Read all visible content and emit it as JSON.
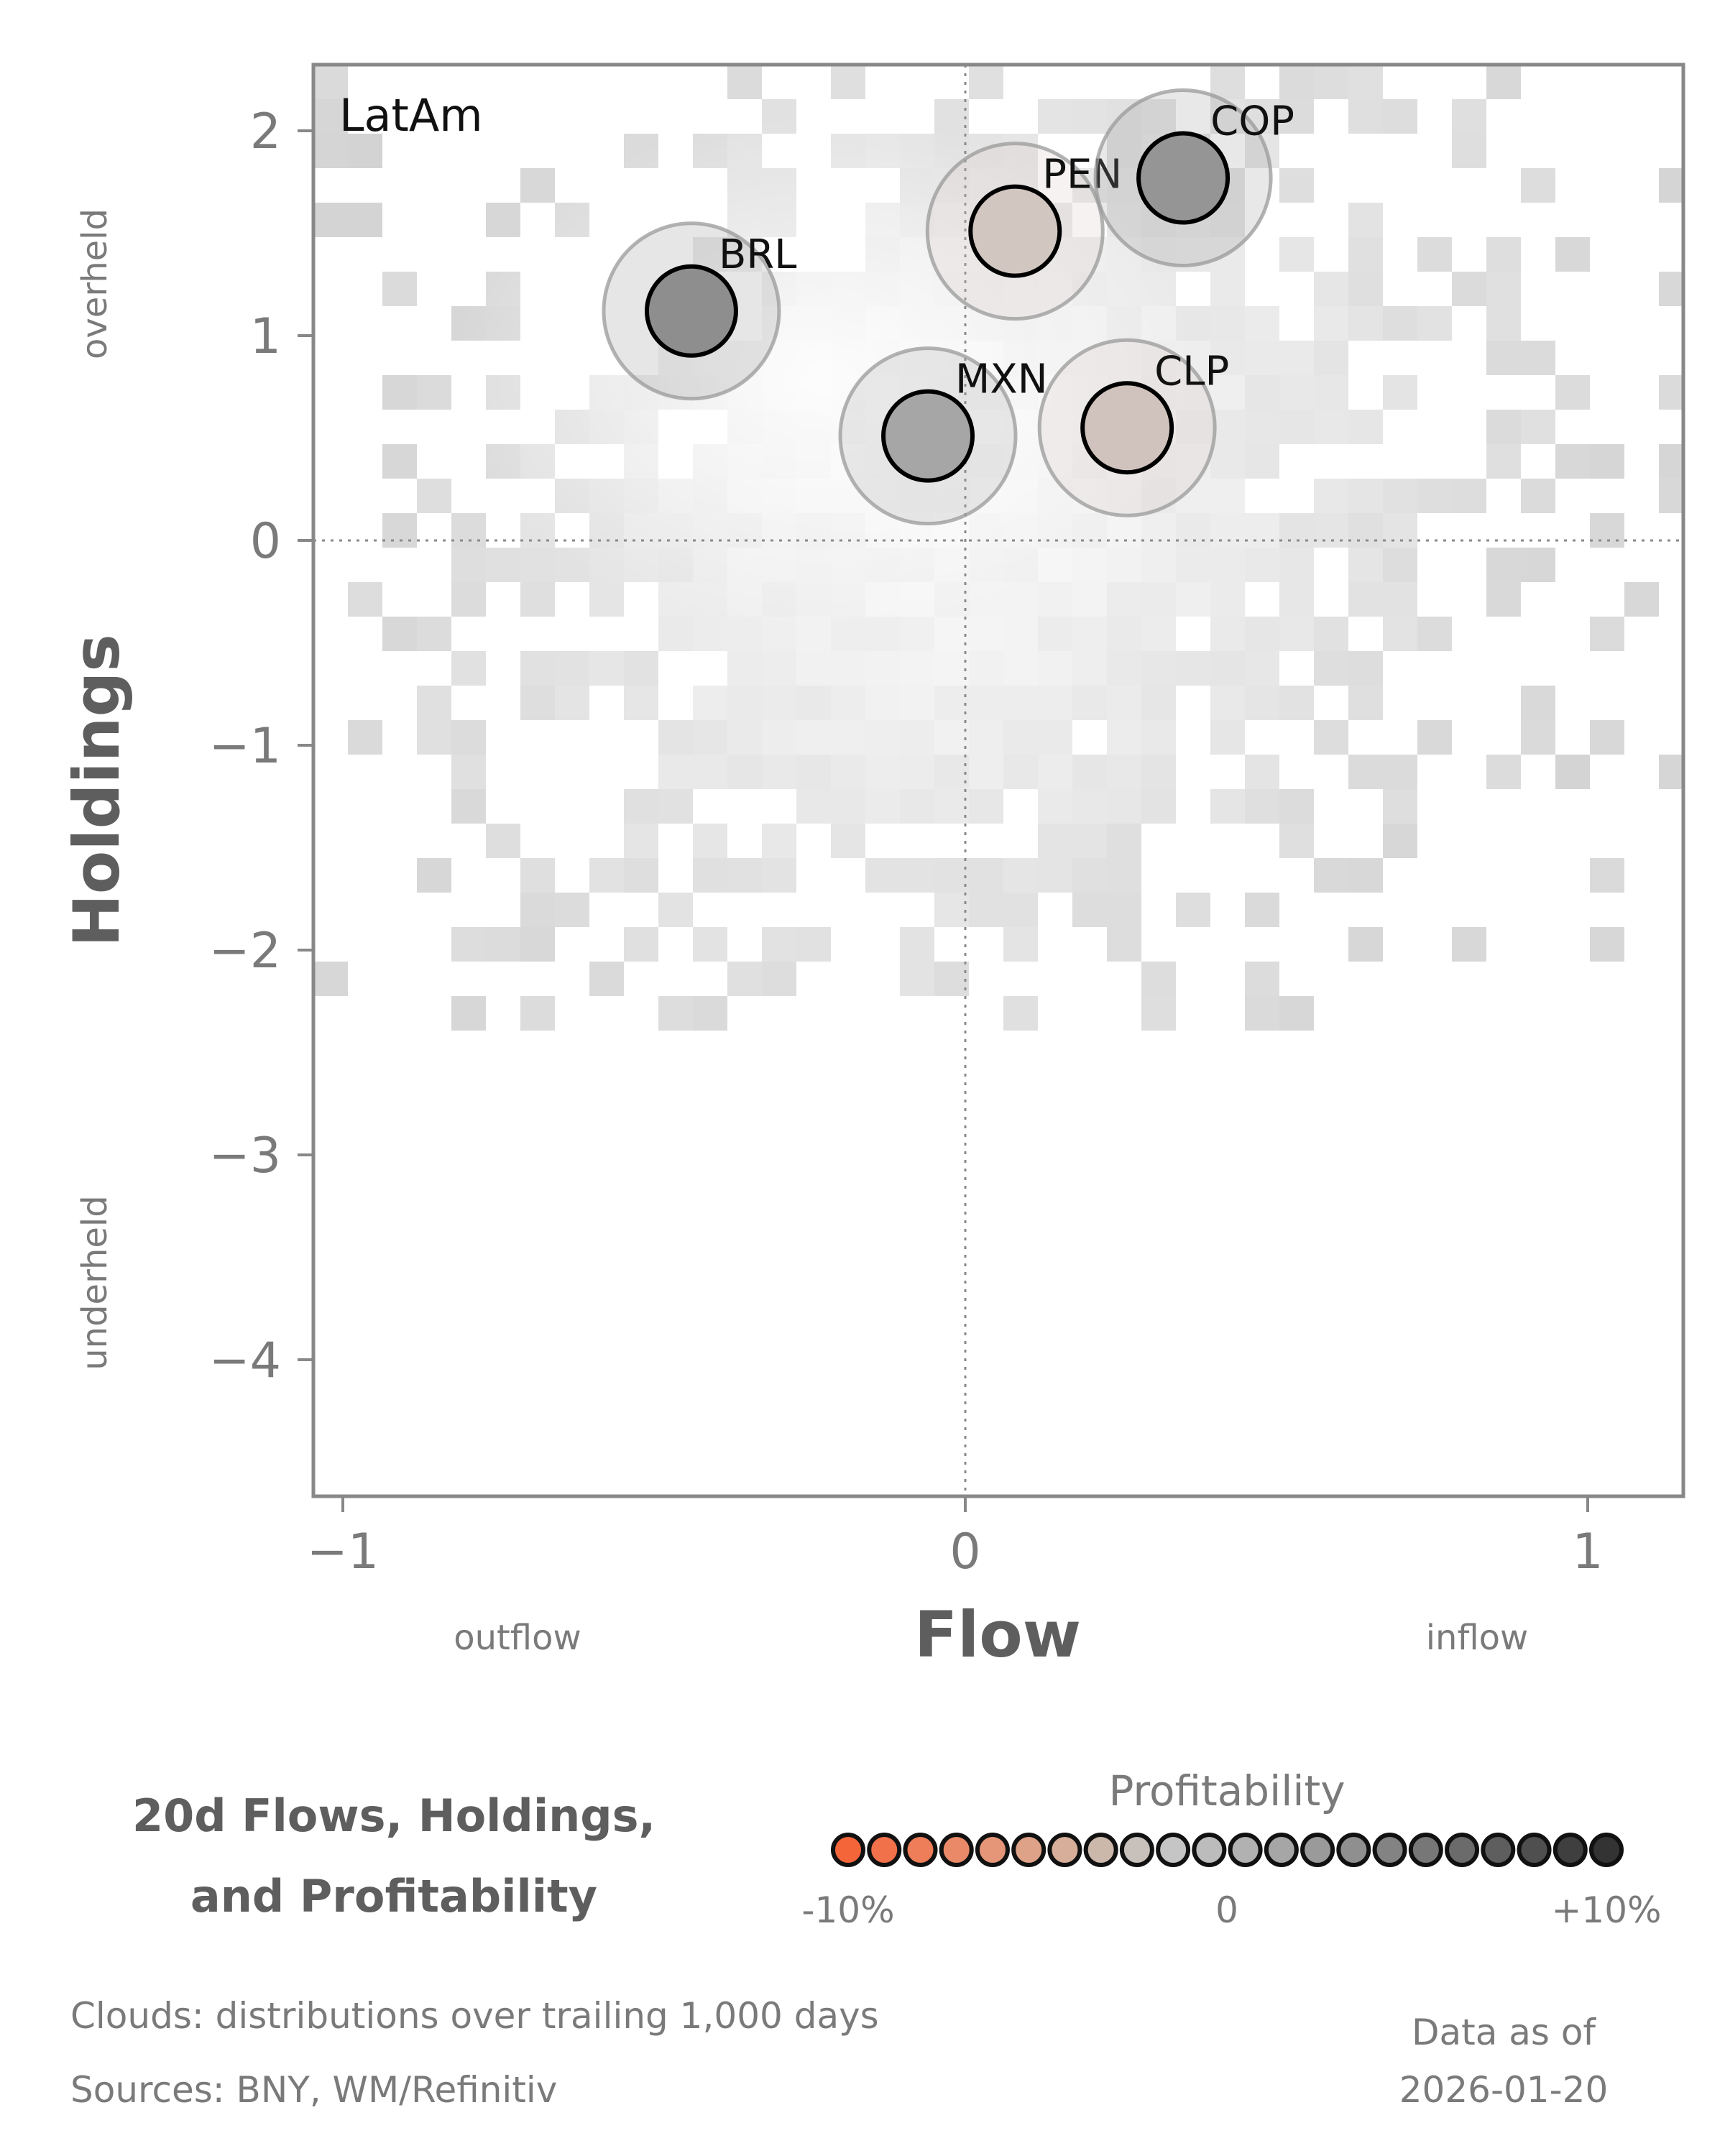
{
  "chart_data": {
    "type": "scatter",
    "panel_label": "LatAm",
    "xlabel": "Flow",
    "ylabel": "Holdings",
    "xlim": [
      -1.05,
      1.15
    ],
    "ylim": [
      -4.65,
      2.35
    ],
    "xticks": [
      -1,
      0,
      1
    ],
    "yticks": [
      2,
      1,
      0,
      -1,
      -2,
      -3,
      -4
    ],
    "xtick_labels": [
      "−1",
      "0",
      "1"
    ],
    "ytick_labels": [
      "2",
      "1",
      "0",
      "−1",
      "−2",
      "−3",
      "−4"
    ],
    "x_side_labels": {
      "left": "outflow",
      "right": "inflow"
    },
    "y_side_labels": {
      "top": "overheld",
      "bottom": "underheld"
    },
    "reference_lines": {
      "x": 0,
      "y": 0,
      "style": "dotted"
    },
    "background": "2D histogram clouds of trailing distributions (gray density)",
    "points": [
      {
        "label": "BRL",
        "x": -0.44,
        "y": 1.12,
        "profitability": 6.5,
        "color": "#8e8e8e"
      },
      {
        "label": "PEN",
        "x": 0.08,
        "y": 1.51,
        "profitability": -1.0,
        "color": "#d2c6c1"
      },
      {
        "label": "COP",
        "x": 0.35,
        "y": 1.77,
        "profitability": 5.0,
        "color": "#959595"
      },
      {
        "label": "MXN",
        "x": -0.06,
        "y": 0.51,
        "profitability": 3.0,
        "color": "#a6a6a6"
      },
      {
        "label": "CLP",
        "x": 0.26,
        "y": 0.55,
        "profitability": -1.5,
        "color": "#d0c3bd"
      }
    ],
    "legend": {
      "title": "Profitability",
      "ticks": [
        "-10%",
        "0",
        "+10%"
      ],
      "colors": [
        "#f4663a",
        "#f1714a",
        "#ee7d59",
        "#ea8968",
        "#e59678",
        "#dea288",
        "#d6ae99",
        "#ccb8ab",
        "#c8c0bb",
        "#c5c5c5",
        "#bcbcbc",
        "#b1b1b1",
        "#a6a6a6",
        "#9a9a9a",
        "#8f8f8f",
        "#838383",
        "#777777",
        "#6b6b6b",
        "#5e5e5e",
        "#4f4f4f",
        "#3f3f3f",
        "#333333"
      ]
    }
  },
  "title": {
    "line1": "20d Flows, Holdings,",
    "line2": "and Profitability"
  },
  "footer": {
    "clouds": "Clouds:  distributions over trailing 1,000 days",
    "sources": "Sources:  BNY, WM/Refinitiv",
    "asof_line1": "Data as of",
    "asof_line2": "2026-01-20"
  }
}
